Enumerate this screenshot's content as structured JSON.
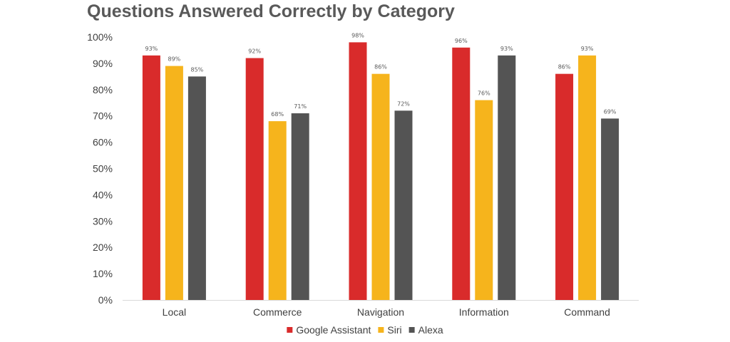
{
  "chart_data": {
    "type": "bar",
    "title": "Questions Answered Correctly by Category",
    "xlabel": "",
    "ylabel": "",
    "ylim": [
      0,
      100
    ],
    "ytick_step": 10,
    "ytick_suffix": "%",
    "grid": false,
    "legend_position": "bottom",
    "categories": [
      "Local",
      "Commerce",
      "Navigation",
      "Information",
      "Command"
    ],
    "series": [
      {
        "name": "Google Assistant",
        "color": "#D92B2B",
        "values": [
          93,
          92,
          98,
          96,
          86
        ]
      },
      {
        "name": "Siri",
        "color": "#F6B41C",
        "values": [
          89,
          68,
          86,
          76,
          93
        ]
      },
      {
        "name": "Alexa",
        "color": "#545454",
        "values": [
          85,
          71,
          72,
          93,
          69
        ]
      }
    ],
    "data_label_suffix": "%"
  }
}
